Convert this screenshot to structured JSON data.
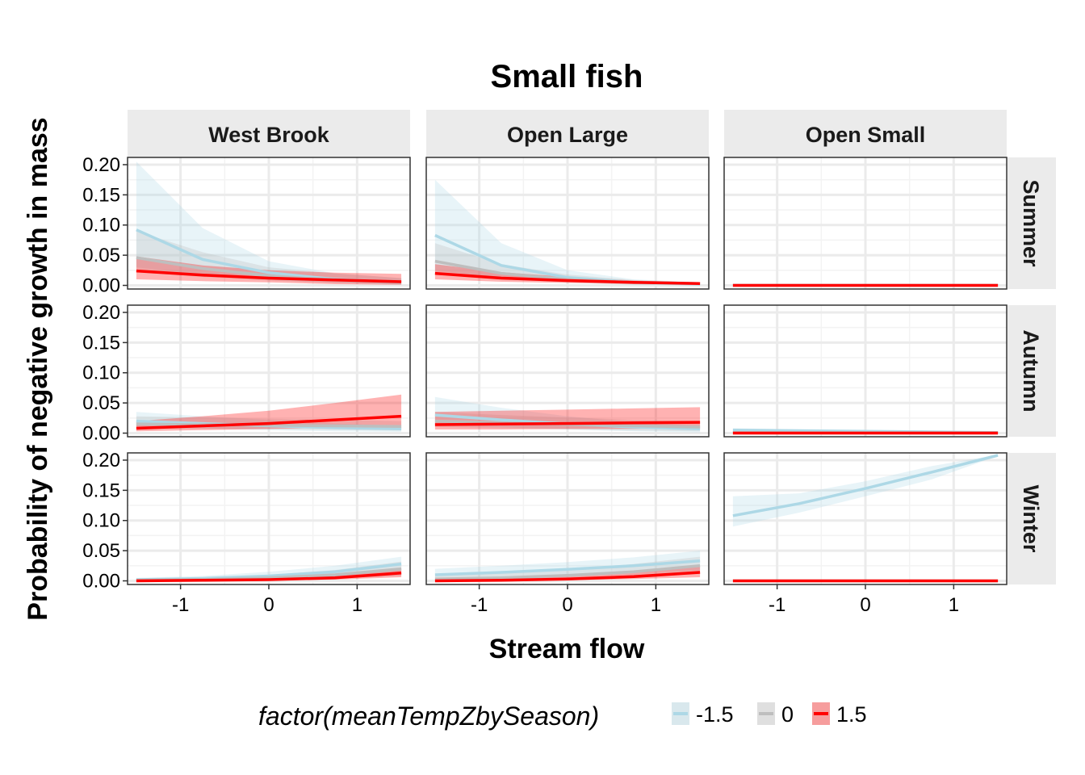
{
  "chart_data": {
    "type": "line",
    "title": "Small fish",
    "xlabel": "Stream flow",
    "ylabel": "Probability of negative growth in mass",
    "x_ticks": [
      -1,
      0,
      1
    ],
    "y_ticks": [
      "0.00",
      "0.05",
      "0.10",
      "0.15",
      "0.20"
    ],
    "xlim": [
      -1.6,
      1.6
    ],
    "ylim": [
      -0.006,
      0.212
    ],
    "grid": true,
    "columns": [
      "West Brook",
      "Open Large",
      "Open Small"
    ],
    "rows": [
      "Summer",
      "Autumn",
      "Winter"
    ],
    "legend": {
      "title": "factor(meanTempZbySeason)",
      "position": "bottom",
      "entries": [
        {
          "label": "-1.5",
          "color": "#add8e6"
        },
        {
          "label": "0",
          "color": "#bebebe"
        },
        {
          "label": "1.5",
          "color": "#ff0000"
        }
      ]
    },
    "x": [
      -1.5,
      -0.75,
      0,
      0.75,
      1.5
    ],
    "panels": [
      {
        "column": "West Brook",
        "row": "Summer",
        "series": [
          {
            "level": "-1.5",
            "y": [
              0.092,
              0.043,
              0.021,
              0.01,
              0.005
            ],
            "lower": [
              0.03,
              0.018,
              0.01,
              0.004,
              0.001
            ],
            "upper": [
              0.205,
              0.095,
              0.04,
              0.02,
              0.012
            ]
          },
          {
            "level": "0",
            "y": [
              0.046,
              0.028,
              0.016,
              0.009,
              0.005
            ],
            "lower": [
              0.022,
              0.014,
              0.008,
              0.004,
              0.002
            ],
            "upper": [
              0.09,
              0.055,
              0.03,
              0.02,
              0.012
            ]
          },
          {
            "level": "1.5",
            "y": [
              0.024,
              0.017,
              0.012,
              0.009,
              0.006
            ],
            "lower": [
              0.01,
              0.007,
              0.005,
              0.002,
              0.001
            ],
            "upper": [
              0.048,
              0.033,
              0.025,
              0.021,
              0.019
            ]
          }
        ]
      },
      {
        "column": "Open Large",
        "row": "Summer",
        "series": [
          {
            "level": "-1.5",
            "y": [
              0.083,
              0.033,
              0.013,
              0.005,
              0.002
            ],
            "lower": [
              0.025,
              0.012,
              0.005,
              0.001,
              0.0
            ],
            "upper": [
              0.175,
              0.07,
              0.025,
              0.01,
              0.005
            ]
          },
          {
            "level": "0",
            "y": [
              0.04,
              0.02,
              0.01,
              0.005,
              0.003
            ],
            "lower": [
              0.018,
              0.01,
              0.005,
              0.002,
              0.001
            ],
            "upper": [
              0.07,
              0.035,
              0.018,
              0.009,
              0.005
            ]
          },
          {
            "level": "1.5",
            "y": [
              0.02,
              0.012,
              0.008,
              0.005,
              0.003
            ],
            "lower": [
              0.01,
              0.006,
              0.004,
              0.002,
              0.001
            ],
            "upper": [
              0.035,
              0.022,
              0.014,
              0.008,
              0.005
            ]
          }
        ]
      },
      {
        "column": "Open Small",
        "row": "Summer",
        "series": [
          {
            "level": "-1.5",
            "y": [
              0.0,
              0.0,
              0.0,
              0.0,
              0.0
            ],
            "lower": [
              0.0,
              0.0,
              0.0,
              0.0,
              0.0
            ],
            "upper": [
              0.002,
              0.002,
              0.002,
              0.002,
              0.002
            ]
          },
          {
            "level": "0",
            "y": [
              0.0,
              0.0,
              0.0,
              0.0,
              0.0
            ],
            "lower": [
              0.0,
              0.0,
              0.0,
              0.0,
              0.0
            ],
            "upper": [
              0.002,
              0.002,
              0.002,
              0.002,
              0.002
            ]
          },
          {
            "level": "1.5",
            "y": [
              0.0,
              0.0,
              0.0,
              0.0,
              0.0
            ],
            "lower": [
              0.0,
              0.0,
              0.0,
              0.0,
              0.0
            ],
            "upper": [
              0.002,
              0.002,
              0.002,
              0.002,
              0.002
            ]
          }
        ]
      },
      {
        "column": "West Brook",
        "row": "Autumn",
        "series": [
          {
            "level": "-1.5",
            "y": [
              0.02,
              0.016,
              0.012,
              0.009,
              0.007
            ],
            "lower": [
              0.01,
              0.008,
              0.005,
              0.003,
              0.002
            ],
            "upper": [
              0.035,
              0.028,
              0.022,
              0.016,
              0.012
            ]
          },
          {
            "level": "0",
            "y": [
              0.015,
              0.014,
              0.013,
              0.012,
              0.011
            ],
            "lower": [
              0.007,
              0.007,
              0.006,
              0.005,
              0.004
            ],
            "upper": [
              0.028,
              0.026,
              0.024,
              0.022,
              0.02
            ]
          },
          {
            "level": "1.5",
            "y": [
              0.008,
              0.012,
              0.016,
              0.022,
              0.028
            ],
            "lower": [
              0.003,
              0.005,
              0.007,
              0.009,
              0.012
            ],
            "upper": [
              0.02,
              0.028,
              0.037,
              0.05,
              0.064
            ]
          }
        ]
      },
      {
        "column": "Open Large",
        "row": "Autumn",
        "series": [
          {
            "level": "-1.5",
            "y": [
              0.03,
              0.022,
              0.015,
              0.01,
              0.007
            ],
            "lower": [
              0.013,
              0.01,
              0.006,
              0.003,
              0.001
            ],
            "upper": [
              0.06,
              0.042,
              0.028,
              0.018,
              0.012
            ]
          },
          {
            "level": "0",
            "y": [
              0.02,
              0.017,
              0.014,
              0.012,
              0.01
            ],
            "lower": [
              0.01,
              0.008,
              0.006,
              0.004,
              0.003
            ],
            "upper": [
              0.035,
              0.03,
              0.026,
              0.022,
              0.02
            ]
          },
          {
            "level": "1.5",
            "y": [
              0.014,
              0.015,
              0.016,
              0.017,
              0.018
            ],
            "lower": [
              0.006,
              0.006,
              0.007,
              0.007,
              0.008
            ],
            "upper": [
              0.035,
              0.037,
              0.039,
              0.041,
              0.043
            ]
          }
        ]
      },
      {
        "column": "Open Small",
        "row": "Autumn",
        "series": [
          {
            "level": "-1.5",
            "y": [
              0.005,
              0.004,
              0.003,
              0.002,
              0.001
            ],
            "lower": [
              0.002,
              0.0015,
              0.001,
              0.0005,
              0.0
            ],
            "upper": [
              0.008,
              0.006,
              0.005,
              0.004,
              0.003
            ]
          },
          {
            "level": "0",
            "y": [
              0.001,
              0.001,
              0.001,
              0.001,
              0.001
            ],
            "lower": [
              0.0,
              0.0,
              0.0,
              0.0,
              0.0
            ],
            "upper": [
              0.003,
              0.003,
              0.003,
              0.003,
              0.003
            ]
          },
          {
            "level": "1.5",
            "y": [
              0.0,
              0.0,
              0.0,
              0.0,
              0.0
            ],
            "lower": [
              0.0,
              0.0,
              0.0,
              0.0,
              0.0
            ],
            "upper": [
              0.002,
              0.002,
              0.002,
              0.002,
              0.002
            ]
          }
        ]
      },
      {
        "column": "West Brook",
        "row": "Winter",
        "series": [
          {
            "level": "-1.5",
            "y": [
              0.002,
              0.004,
              0.008,
              0.015,
              0.028
            ],
            "lower": [
              0.0,
              0.001,
              0.003,
              0.007,
              0.012
            ],
            "upper": [
              0.005,
              0.008,
              0.015,
              0.025,
              0.04
            ]
          },
          {
            "level": "0",
            "y": [
              0.001,
              0.002,
              0.005,
              0.01,
              0.02
            ],
            "lower": [
              0.0,
              0.001,
              0.002,
              0.004,
              0.008
            ],
            "upper": [
              0.003,
              0.005,
              0.01,
              0.018,
              0.032
            ]
          },
          {
            "level": "1.5",
            "y": [
              0.0,
              0.001,
              0.002,
              0.005,
              0.013
            ],
            "lower": [
              0.0,
              0.0,
              0.001,
              0.002,
              0.006
            ],
            "upper": [
              0.001,
              0.002,
              0.005,
              0.01,
              0.022
            ]
          }
        ]
      },
      {
        "column": "Open Large",
        "row": "Winter",
        "series": [
          {
            "level": "-1.5",
            "y": [
              0.01,
              0.014,
              0.019,
              0.025,
              0.033
            ],
            "lower": [
              0.004,
              0.007,
              0.01,
              0.013,
              0.018
            ],
            "upper": [
              0.02,
              0.025,
              0.031,
              0.039,
              0.05
            ]
          },
          {
            "level": "0",
            "y": [
              0.003,
              0.005,
              0.009,
              0.015,
              0.025
            ],
            "lower": [
              0.001,
              0.002,
              0.004,
              0.007,
              0.012
            ],
            "upper": [
              0.008,
              0.012,
              0.018,
              0.028,
              0.04
            ]
          },
          {
            "level": "1.5",
            "y": [
              0.0,
              0.001,
              0.003,
              0.007,
              0.014
            ],
            "lower": [
              0.0,
              0.0,
              0.001,
              0.003,
              0.006
            ],
            "upper": [
              0.002,
              0.004,
              0.007,
              0.013,
              0.024
            ]
          }
        ]
      },
      {
        "column": "Open Small",
        "row": "Winter",
        "series": [
          {
            "level": "-1.5",
            "y": [
              0.108,
              0.128,
              0.153,
              0.18,
              0.208
            ],
            "lower": [
              0.09,
              0.113,
              0.14,
              0.168,
              0.207
            ],
            "upper": [
              0.14,
              0.145,
              0.165,
              0.19,
              0.209
            ]
          },
          {
            "level": "0",
            "y": [
              0.0,
              0.0,
              0.0,
              0.0,
              0.0
            ],
            "lower": [
              0.0,
              0.0,
              0.0,
              0.0,
              0.0
            ],
            "upper": [
              0.001,
              0.001,
              0.001,
              0.001,
              0.001
            ]
          },
          {
            "level": "1.5",
            "y": [
              0.0,
              0.0,
              0.0,
              0.0,
              0.0
            ],
            "lower": [
              0.0,
              0.0,
              0.0,
              0.0,
              0.0
            ],
            "upper": [
              0.001,
              0.001,
              0.001,
              0.001,
              0.001
            ]
          }
        ]
      }
    ]
  }
}
